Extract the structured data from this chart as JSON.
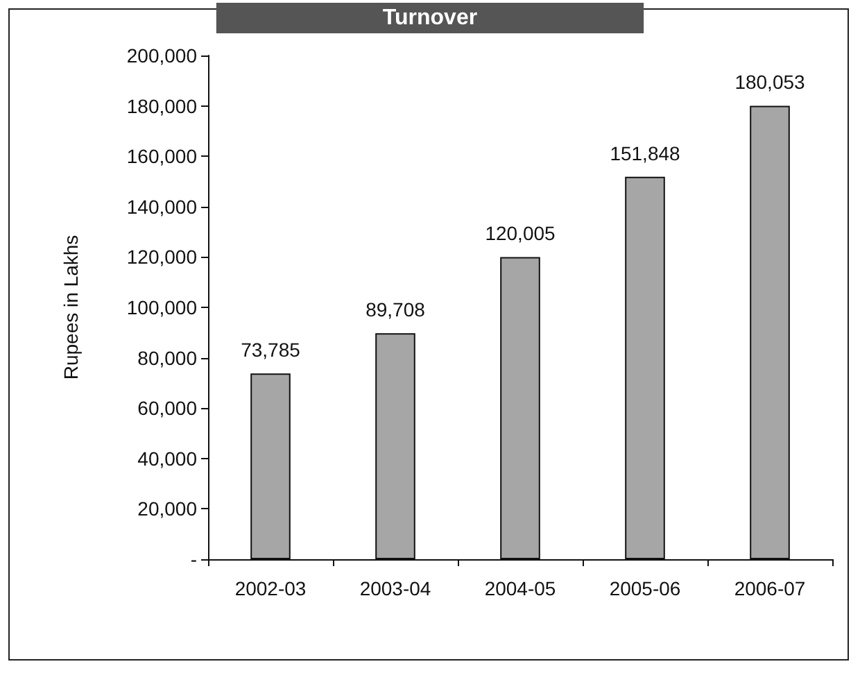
{
  "chart_data": {
    "type": "bar",
    "title": "Turnover",
    "ylabel": "Rupees in Lakhs",
    "categories": [
      "2002-03",
      "2003-04",
      "2004-05",
      "2005-06",
      "2006-07"
    ],
    "values": [
      73785,
      89708,
      120005,
      151848,
      180053
    ],
    "value_labels": [
      "73,785",
      "89,708",
      "120,005",
      "151,848",
      "180,053"
    ],
    "color": "#a6a6a6",
    "ylim": [
      0,
      200000
    ],
    "yticks": [
      {
        "value": 0,
        "label": "-"
      },
      {
        "value": 20000,
        "label": "20,000"
      },
      {
        "value": 40000,
        "label": "40,000"
      },
      {
        "value": 60000,
        "label": "60,000"
      },
      {
        "value": 80000,
        "label": "80,000"
      },
      {
        "value": 100000,
        "label": "100,000"
      },
      {
        "value": 120000,
        "label": "120,000"
      },
      {
        "value": 140000,
        "label": "140,000"
      },
      {
        "value": 160000,
        "label": "160,000"
      },
      {
        "value": 180000,
        "label": "180,000"
      },
      {
        "value": 200000,
        "label": "200,000"
      }
    ],
    "grid": false
  }
}
